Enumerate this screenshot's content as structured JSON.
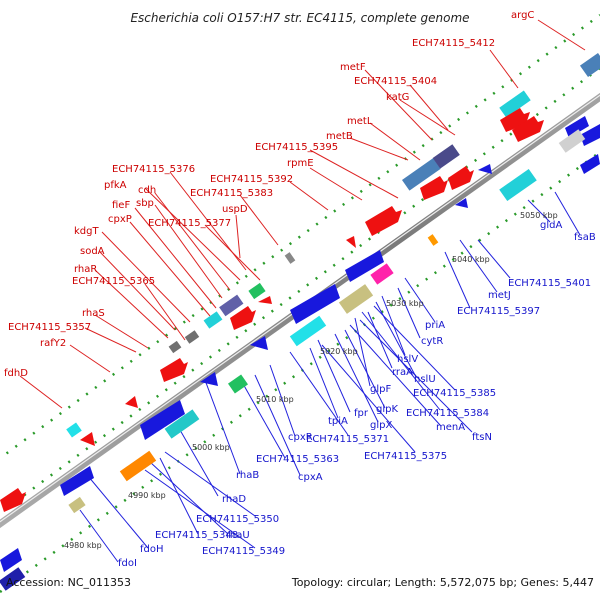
{
  "title": "Escherichia coli O157:H7 str. EC4115, complete genome",
  "footer": {
    "accession": "Accession: NC_011353",
    "topology": "Topology: circular; Length: 5,572,075 bp; Genes: 5,447"
  },
  "ticks": [
    "4980 kbp",
    "4990 kbp",
    "5000 kbp",
    "5010 kbp",
    "5020 kbp",
    "5030 kbp",
    "5040 kbp",
    "5050 kbp"
  ],
  "top_labels": [
    "argC",
    "ECH74115_5412",
    "metF",
    "ECH74115_5404",
    "katG",
    "metL",
    "metB",
    "ECH74115_5395",
    "rpmE",
    "ECH74115_5392",
    "uspD",
    "ECH74115_5383",
    "ECH74115_5376",
    "pfkA",
    "cdh",
    "sbp",
    "fieF",
    "cpxP",
    "ECH74115_5377",
    "kdgT",
    "sodA",
    "rhaR",
    "ECH74115_5365",
    "rhaS",
    "ECH74115_5357",
    "rafY2",
    "fdhD"
  ],
  "bottom_labels": [
    "fsaB",
    "gldA",
    "ECH74115_5401",
    "metJ",
    "ECH74115_5397",
    "priA",
    "cytR",
    "hslV",
    "hslU",
    "rraA",
    "ECH74115_5385",
    "glpF",
    "ECH74115_5384",
    "menA",
    "ftsN",
    "glpK",
    "glpX",
    "fpr",
    "tpiA",
    "ECH74115_5375",
    "ECH74115_5371",
    "cpxR",
    "cpxA",
    "ECH74115_5363",
    "rhaB",
    "rhaD",
    "ECH74115_5350",
    "ECH74115_5348",
    "rhaU",
    "ECH74115_5349",
    "fdoH",
    "fdoI"
  ]
}
